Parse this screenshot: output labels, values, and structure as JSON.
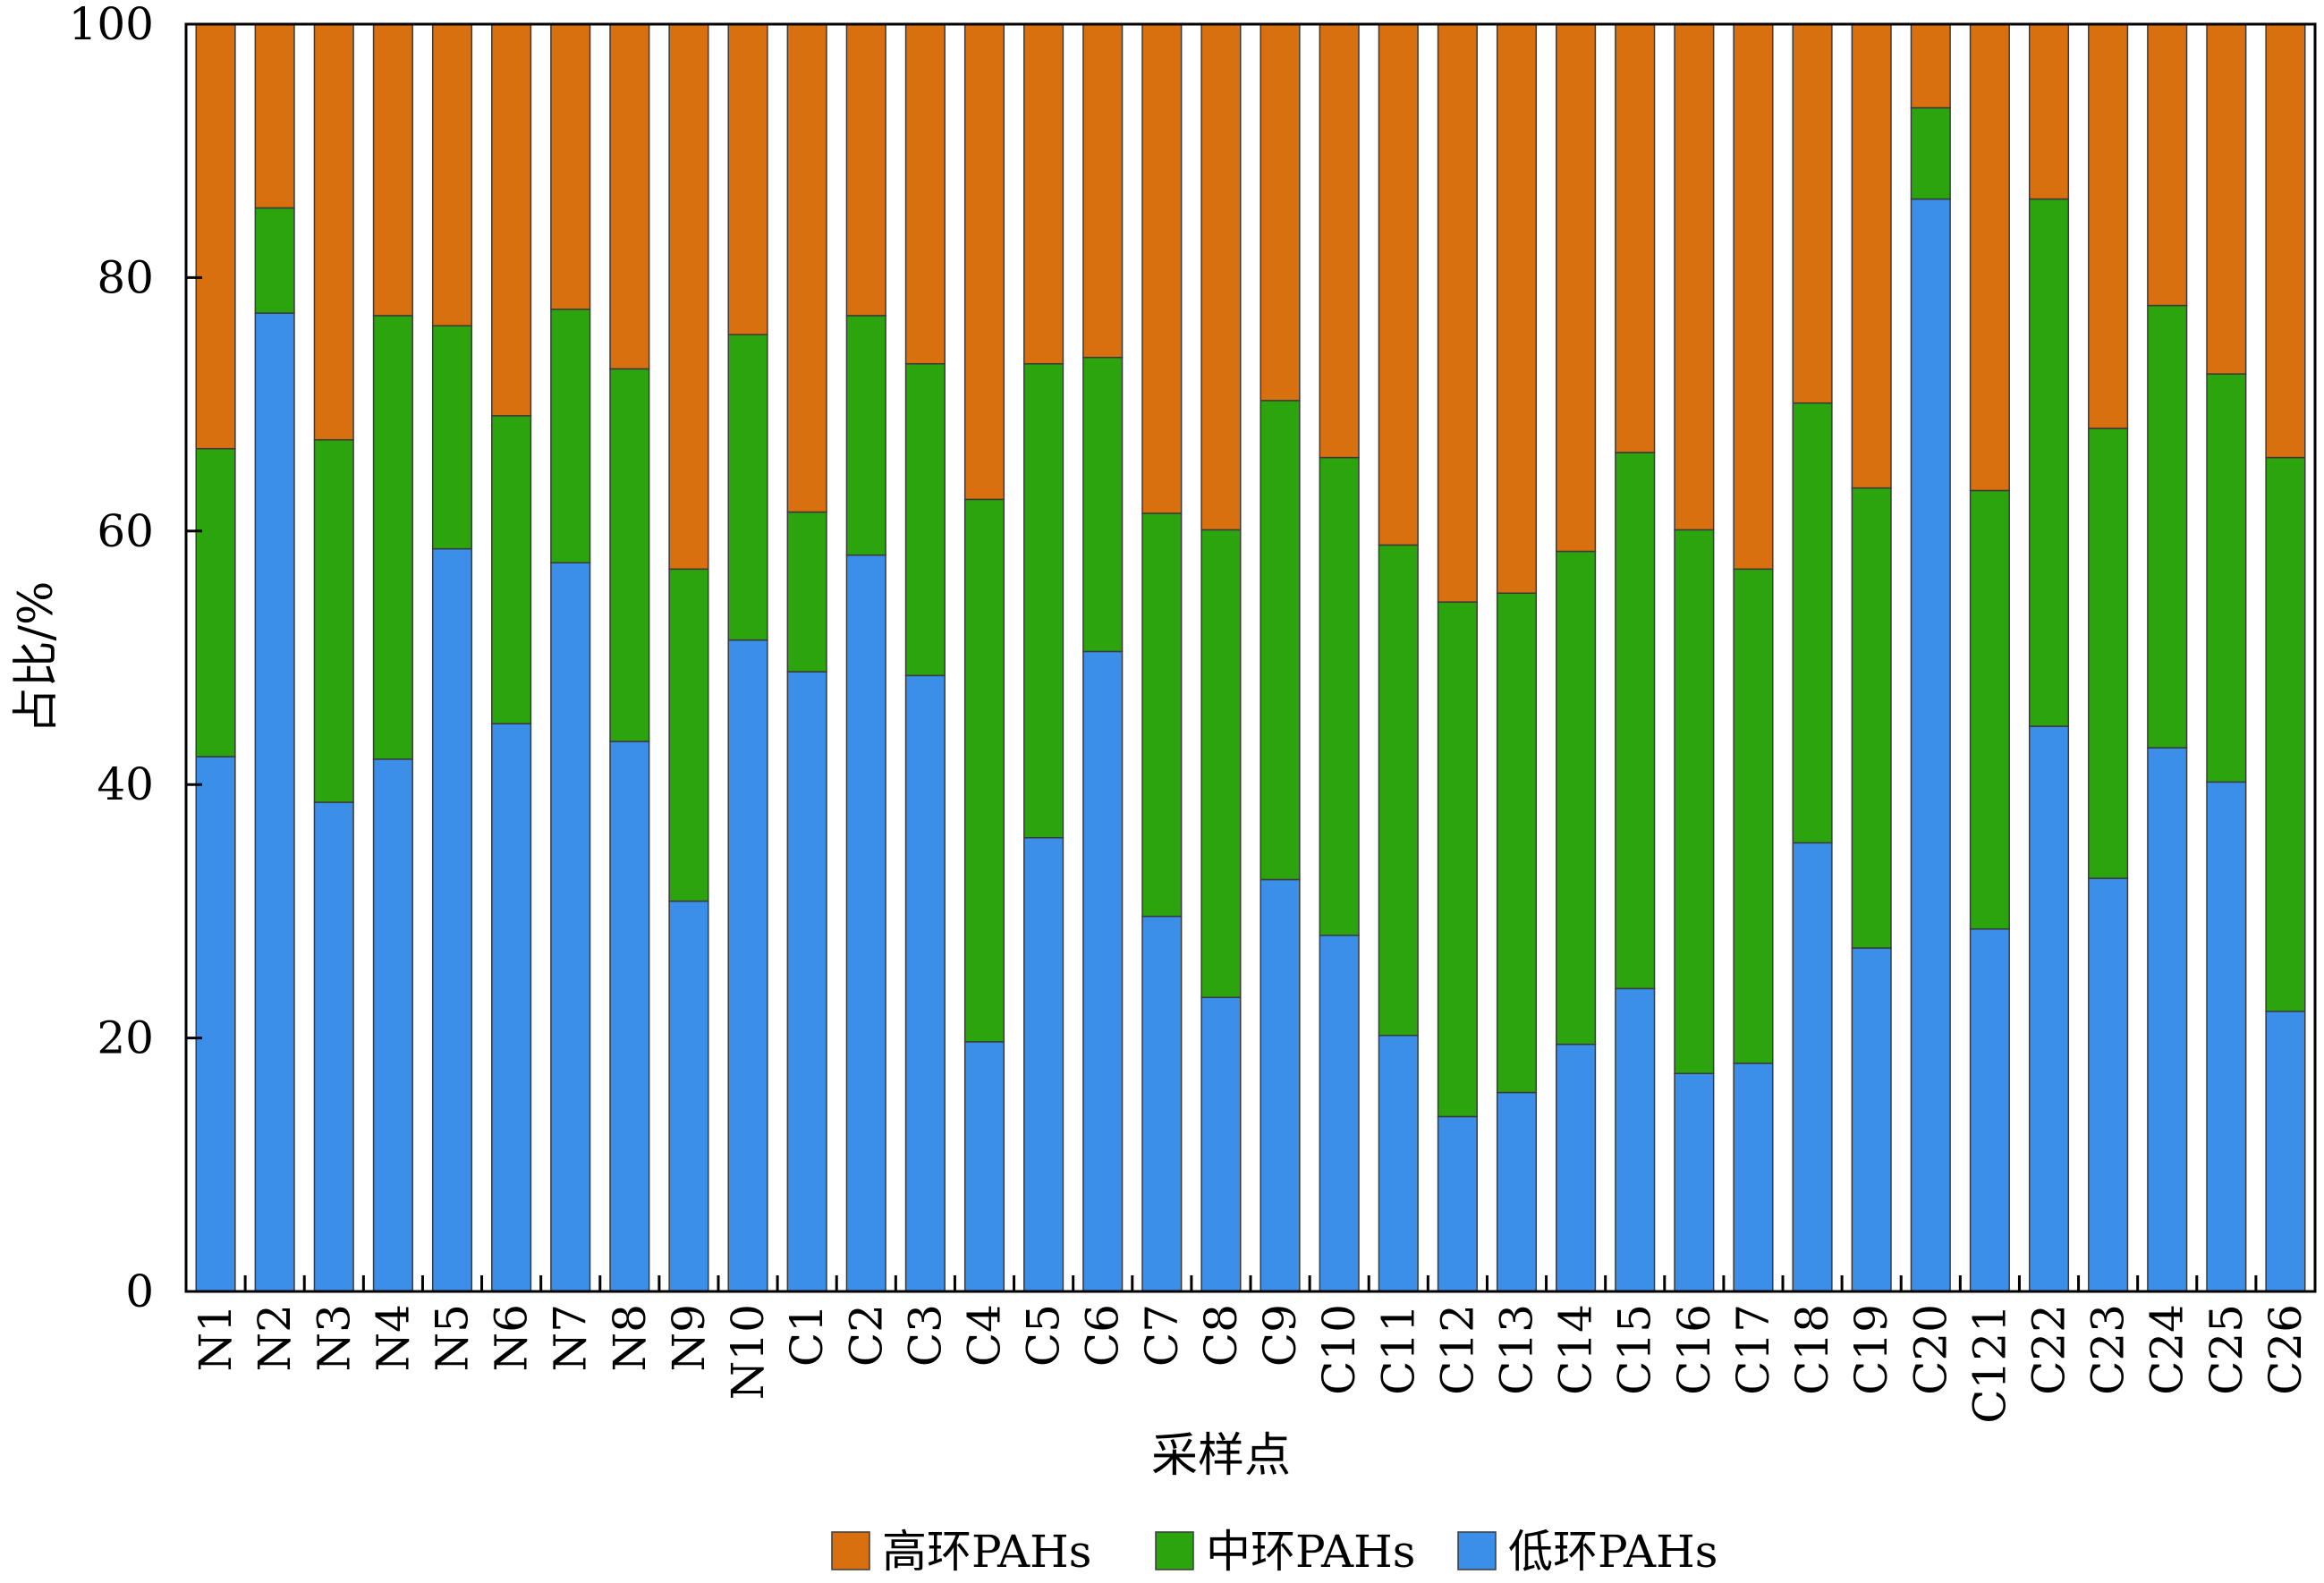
{
  "chart_data": {
    "type": "bar",
    "stacked": true,
    "ylabel": "占比/%",
    "xlabel": "采样点",
    "ylim": [
      0,
      100
    ],
    "yticks": [
      0,
      20,
      40,
      60,
      80,
      100
    ],
    "categories": [
      "N1",
      "N2",
      "N3",
      "N4",
      "N5",
      "N6",
      "N7",
      "N8",
      "N9",
      "N10",
      "C1",
      "C2",
      "C3",
      "C4",
      "C5",
      "C6",
      "C7",
      "C8",
      "C9",
      "C10",
      "C11",
      "C12",
      "C13",
      "C14",
      "C15",
      "C16",
      "C17",
      "C18",
      "C19",
      "C20",
      "C121",
      "C22",
      "C23",
      "C24",
      "C25",
      "C26"
    ],
    "series": [
      {
        "name": "低环PAHs",
        "color": "#3b8fe8",
        "values": [
          42.2,
          77.2,
          38.6,
          42,
          58.6,
          44.8,
          57.5,
          43.4,
          30.8,
          51.4,
          48.9,
          58.1,
          48.6,
          19.7,
          35.8,
          50.5,
          29.6,
          23.2,
          32.5,
          28.1,
          20.2,
          13.8,
          15.7,
          19.5,
          23.9,
          17.2,
          18,
          35.4,
          27.1,
          86.2,
          28.6,
          44.6,
          32.6,
          42.9,
          40.2,
          22.1
        ]
      },
      {
        "name": "中环PAHs",
        "color": "#2ca40e",
        "values": [
          24.3,
          8.3,
          28.6,
          35,
          17.6,
          24.3,
          20,
          29.4,
          26.2,
          24.1,
          12.6,
          18.9,
          24.6,
          42.8,
          37.4,
          23.2,
          31.8,
          36.9,
          37.8,
          37.7,
          38.7,
          40.6,
          39.4,
          38.9,
          42.3,
          42.9,
          39,
          34.7,
          36.3,
          7.2,
          34.6,
          41.6,
          35.5,
          34.9,
          32.2,
          43.7
        ]
      },
      {
        "name": "高环PAHs",
        "color": "#d9700f",
        "values": [
          33.5,
          14.5,
          32.8,
          23,
          23.8,
          30.9,
          22.5,
          27.2,
          43,
          24.5,
          38.5,
          23,
          26.8,
          37.5,
          26.8,
          26.3,
          38.6,
          39.9,
          29.7,
          34.2,
          41.1,
          45.6,
          44.9,
          41.6,
          33.8,
          39.9,
          43,
          29.9,
          36.6,
          6.6,
          36.8,
          13.8,
          31.9,
          22.2,
          27.6,
          34.2
        ]
      }
    ],
    "legend": {
      "position": "bottom-center",
      "order": [
        "高环PAHs",
        "中环PAHs",
        "低环PAHs"
      ]
    },
    "grid": false
  }
}
